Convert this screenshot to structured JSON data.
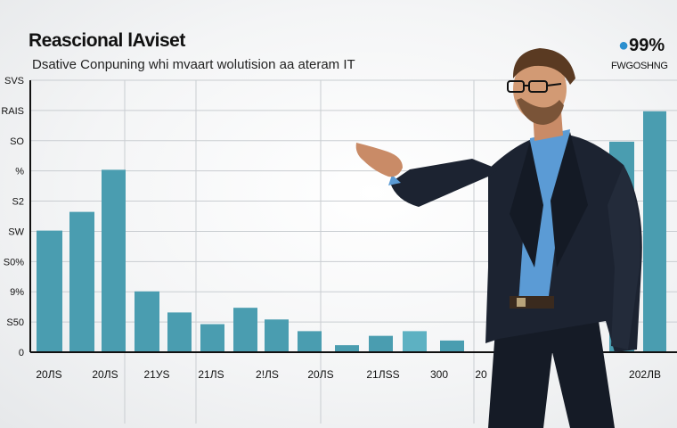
{
  "header": {
    "title": "Reascional lAviset",
    "subtitle": "Dsative Conpuning whi mvaart wolutision aa ateram IT",
    "badge_prefix": "●",
    "badge_value": "99%",
    "badge_label": "FWGOSHNG"
  },
  "chart_data": {
    "type": "bar",
    "y_tick_labels": [
      "SVS",
      "RAIS",
      "SO",
      "%",
      "S2",
      "SW",
      "S0%",
      "9%",
      "S50",
      "0"
    ],
    "x_tick_labels": [
      "20ЛS",
      "20ЛS",
      "21УS",
      "21ЛS",
      "2!ЛS",
      "20ЛS",
      "21ЛSS",
      "300",
      "20",
      "202ЛB"
    ],
    "values": [
      0.52,
      0.6,
      0.78,
      0.26,
      0.17,
      0.12,
      0.19,
      0.14,
      0.09,
      0.03,
      0.07,
      0.09,
      0.05,
      0.9,
      1.03
    ],
    "value_scale": "fraction of plot height",
    "grid": true
  },
  "scene": {
    "person": "man in dark suit and blue shirt wearing glasses, pointing left toward the chart"
  },
  "colors": {
    "bar": "#4a9db0",
    "suit": "#1c2331",
    "shirt": "#5b9bd5",
    "badge_accent": "#2b8fcf"
  }
}
